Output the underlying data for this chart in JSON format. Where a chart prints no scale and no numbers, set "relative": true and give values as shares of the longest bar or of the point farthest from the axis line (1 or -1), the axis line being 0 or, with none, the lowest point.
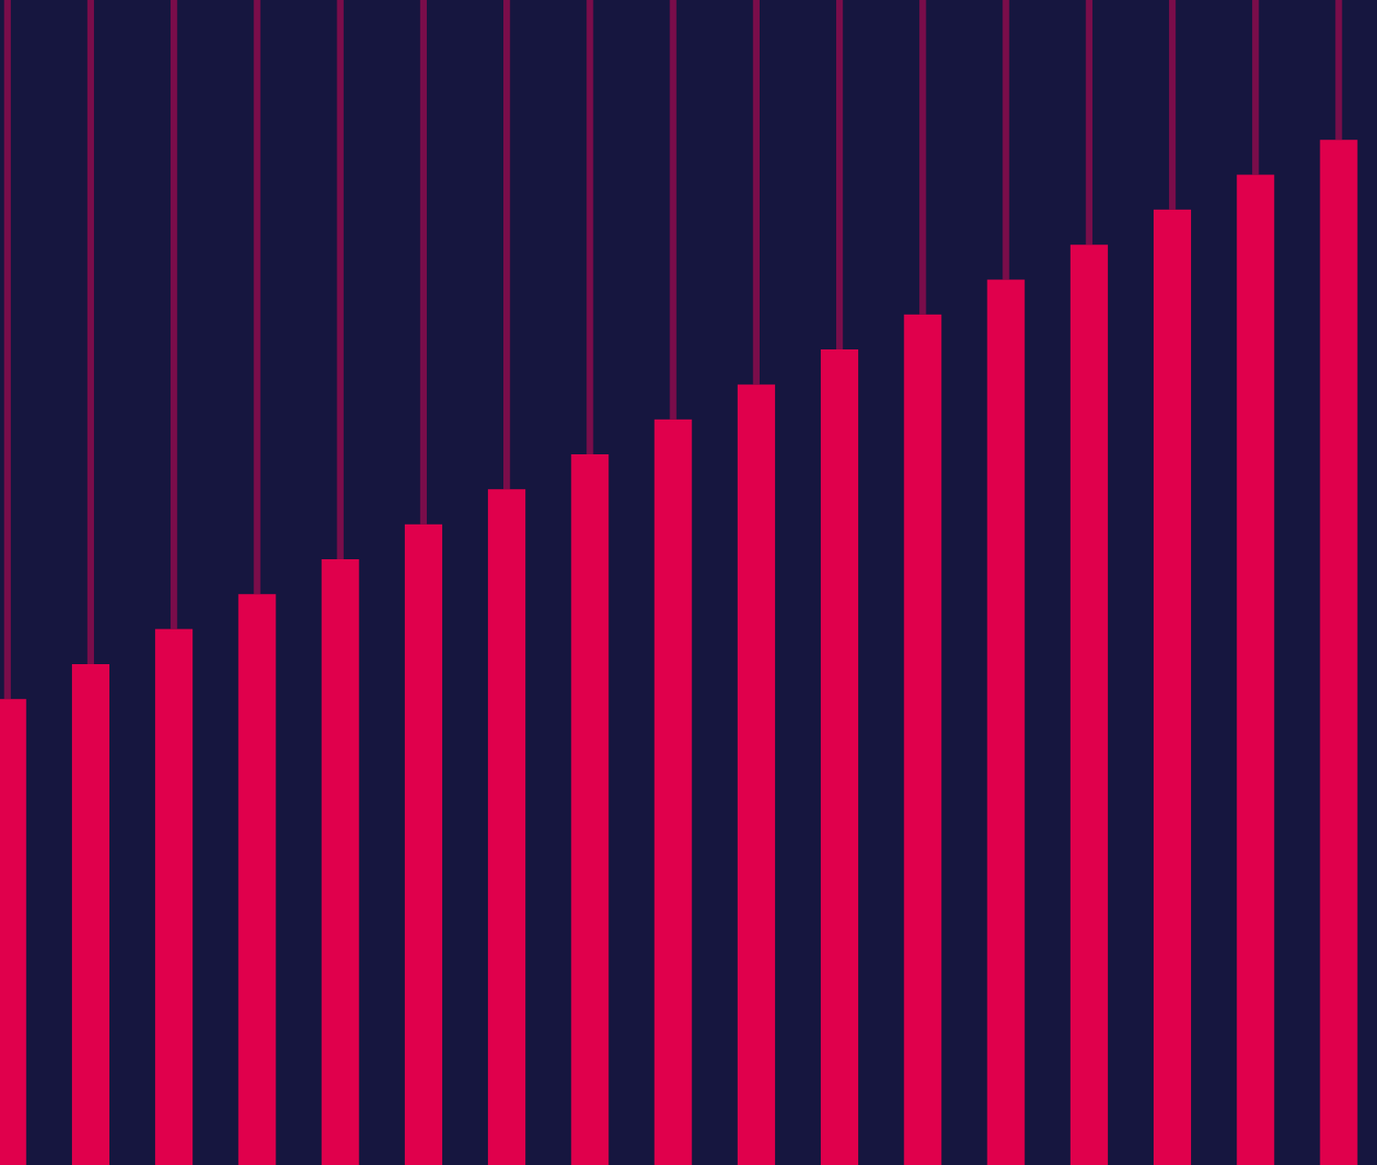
{
  "chart_data": {
    "type": "bar",
    "relative": true,
    "stacked": true,
    "categories": [
      null,
      null,
      null,
      null,
      null,
      null,
      null,
      null,
      null,
      null,
      null,
      null,
      null,
      null,
      null,
      null,
      null
    ],
    "series": [
      {
        "color": "#e0004c",
        "values": [
          0.4,
          0.43,
          0.46,
          0.49,
          0.52,
          0.55,
          0.58,
          0.61,
          0.64,
          0.67,
          0.7,
          0.73,
          0.76,
          0.79,
          0.82,
          0.85,
          0.88
        ]
      },
      {
        "color": "#7a0d4a",
        "values": [
          0.6,
          0.57,
          0.54,
          0.51,
          0.48,
          0.45,
          0.42,
          0.39,
          0.36,
          0.33,
          0.3,
          0.27,
          0.24,
          0.21,
          0.18,
          0.15,
          0.12
        ]
      }
    ],
    "grid": false,
    "legend": false
  }
}
